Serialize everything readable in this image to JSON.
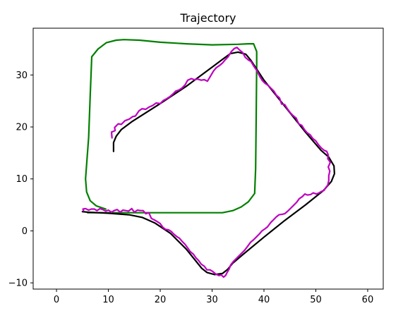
{
  "chart_data": {
    "type": "line",
    "title": "Trajectory",
    "xlabel": "",
    "ylabel": "",
    "xlim": [
      -4.5,
      63
    ],
    "ylim": [
      -11.2,
      39
    ],
    "xticks": [
      0,
      10,
      20,
      30,
      40,
      50,
      60
    ],
    "yticks": [
      -10,
      0,
      10,
      20,
      30
    ],
    "grid": false,
    "series": [
      {
        "color": "#008000",
        "points": [
          [
            6,
            3.5
          ],
          [
            8,
            3.5
          ],
          [
            12,
            3.5
          ],
          [
            16,
            3.5
          ],
          [
            20,
            3.5
          ],
          [
            25,
            3.5
          ],
          [
            30,
            3.5
          ],
          [
            32,
            3.5
          ],
          [
            34,
            3.9
          ],
          [
            35.6,
            4.6
          ],
          [
            37,
            5.6
          ],
          [
            38.2,
            7.2
          ],
          [
            38.4,
            12
          ],
          [
            38.5,
            22
          ],
          [
            38.6,
            32
          ],
          [
            38.6,
            34.5
          ],
          [
            38,
            36
          ],
          [
            37,
            36
          ],
          [
            35,
            35.9
          ],
          [
            30,
            35.8
          ],
          [
            25,
            36
          ],
          [
            20,
            36.3
          ],
          [
            16,
            36.7
          ],
          [
            13,
            36.8
          ],
          [
            11.5,
            36.7
          ],
          [
            9.6,
            36.2
          ],
          [
            8,
            35
          ],
          [
            6.8,
            33.5
          ],
          [
            6.5,
            26
          ],
          [
            6.2,
            18
          ],
          [
            5.6,
            10
          ],
          [
            5.8,
            7.5
          ],
          [
            6.5,
            5.8
          ],
          [
            7.7,
            4.8
          ],
          [
            9.5,
            4.2
          ]
        ]
      },
      {
        "color": "#000000",
        "points": [
          [
            11,
            15.3
          ],
          [
            11,
            17
          ],
          [
            11.5,
            18.2
          ],
          [
            12.5,
            19.5
          ],
          [
            14.5,
            21
          ],
          [
            20,
            24.5
          ],
          [
            25,
            27.8
          ],
          [
            30,
            31.5
          ],
          [
            32,
            33
          ],
          [
            33.5,
            34.1
          ],
          [
            35,
            34.4
          ],
          [
            36.5,
            34
          ],
          [
            37.5,
            32.8
          ],
          [
            40,
            29
          ],
          [
            44,
            24
          ],
          [
            48,
            19
          ],
          [
            51,
            15.5
          ],
          [
            52.5,
            14.2
          ],
          [
            53.5,
            12.5
          ],
          [
            53.6,
            11
          ],
          [
            53,
            9.5
          ],
          [
            51.5,
            7.8
          ],
          [
            48,
            5
          ],
          [
            44,
            2
          ],
          [
            40,
            -1.2
          ],
          [
            36,
            -4.5
          ],
          [
            34,
            -6.2
          ],
          [
            33,
            -7.4
          ],
          [
            32,
            -8.2
          ],
          [
            30.5,
            -8.4
          ],
          [
            29,
            -8
          ],
          [
            28,
            -7.2
          ],
          [
            25,
            -3.5
          ],
          [
            22,
            -0.5
          ],
          [
            19,
            1.5
          ],
          [
            16.5,
            2.6
          ],
          [
            14,
            3.1
          ],
          [
            10,
            3.4
          ],
          [
            6,
            3.6
          ],
          [
            5,
            3.7
          ]
        ]
      },
      {
        "color": "#bf00bf",
        "points": [
          [
            10.7,
            17.9
          ],
          [
            10.6,
            19
          ],
          [
            11.3,
            19.3
          ],
          [
            11.2,
            19.9
          ],
          [
            11.9,
            20.6
          ],
          [
            12.5,
            20.5
          ],
          [
            13.2,
            21.2
          ],
          [
            14,
            21.5
          ],
          [
            14.7,
            22
          ],
          [
            15.2,
            22.1
          ],
          [
            15.9,
            23.1
          ],
          [
            16.5,
            23.5
          ],
          [
            17.2,
            23.4
          ],
          [
            17.8,
            23.8
          ],
          [
            18.5,
            24.1
          ],
          [
            19.2,
            24.6
          ],
          [
            20,
            24.5
          ],
          [
            20.6,
            25.1
          ],
          [
            21.2,
            25.4
          ],
          [
            21.8,
            25.8
          ],
          [
            22.4,
            26.3
          ],
          [
            23,
            26.9
          ],
          [
            23.6,
            27.1
          ],
          [
            24.2,
            27.5
          ],
          [
            24.8,
            28.1
          ],
          [
            25.3,
            29
          ],
          [
            26,
            29.3
          ],
          [
            26.6,
            29.1
          ],
          [
            27.2,
            29.2
          ],
          [
            27.9,
            29
          ],
          [
            28.5,
            29.1
          ],
          [
            29.1,
            28.8
          ],
          [
            29.7,
            29.8
          ],
          [
            30.3,
            30.8
          ],
          [
            30.8,
            31.4
          ],
          [
            31.4,
            31.8
          ],
          [
            32,
            32.3
          ],
          [
            32.5,
            32.9
          ],
          [
            33.1,
            33.5
          ],
          [
            33.7,
            34.5
          ],
          [
            34.3,
            35.1
          ],
          [
            34.8,
            35.3
          ],
          [
            35.3,
            34.8
          ],
          [
            35.9,
            34.3
          ],
          [
            36.4,
            33.4
          ],
          [
            37,
            32.9
          ],
          [
            37.5,
            32.6
          ],
          [
            38.1,
            31.6
          ],
          [
            38.6,
            30.9
          ],
          [
            39.2,
            29.7
          ],
          [
            39.7,
            28.9
          ],
          [
            40.2,
            28.4
          ],
          [
            40.8,
            28
          ],
          [
            41.3,
            27.5
          ],
          [
            41.9,
            26.9
          ],
          [
            42.4,
            26.1
          ],
          [
            43,
            25.6
          ],
          [
            43.4,
            24.4
          ],
          [
            44,
            24.3
          ],
          [
            44.5,
            23.5
          ],
          [
            45.1,
            22.7
          ],
          [
            45.6,
            22.2
          ],
          [
            46.2,
            21.7
          ],
          [
            46.7,
            20.6
          ],
          [
            47.3,
            20.3
          ],
          [
            47.8,
            19.5
          ],
          [
            48.3,
            18.9
          ],
          [
            48.9,
            18.5
          ],
          [
            49.4,
            17.8
          ],
          [
            50,
            17.3
          ],
          [
            50.5,
            16.6
          ],
          [
            51,
            16
          ],
          [
            51.6,
            15.5
          ],
          [
            52.1,
            15.3
          ],
          [
            52.4,
            14.6
          ],
          [
            52.3,
            13.9
          ],
          [
            52.8,
            13.2
          ],
          [
            52.4,
            12.3
          ],
          [
            52.7,
            11.5
          ],
          [
            52.5,
            10.6
          ],
          [
            52.5,
            9.7
          ],
          [
            52.3,
            8.8
          ],
          [
            51.9,
            8.3
          ],
          [
            51.6,
            7.8
          ],
          [
            51.1,
            7.6
          ],
          [
            50.6,
            7.3
          ],
          [
            50.1,
            7.1
          ],
          [
            49.5,
            7.3
          ],
          [
            49,
            7
          ],
          [
            48.4,
            6.9
          ],
          [
            47.9,
            7.1
          ],
          [
            47.4,
            6.6
          ],
          [
            46.8,
            6.2
          ],
          [
            46.3,
            5.5
          ],
          [
            45.7,
            4.9
          ],
          [
            45.2,
            4.4
          ],
          [
            44.6,
            3.8
          ],
          [
            44,
            3.3
          ],
          [
            43.5,
            3.2
          ],
          [
            42.9,
            3.1
          ],
          [
            42.4,
            2.7
          ],
          [
            41.8,
            2.1
          ],
          [
            41.3,
            1.6
          ],
          [
            40.7,
            0.8
          ],
          [
            40.2,
            0.4
          ],
          [
            39.6,
            0
          ],
          [
            39.1,
            -0.6
          ],
          [
            38.5,
            -1.2
          ],
          [
            38,
            -1.7
          ],
          [
            37.4,
            -2.2
          ],
          [
            36.9,
            -2.9
          ],
          [
            36.3,
            -3.7
          ],
          [
            35.8,
            -4.2
          ],
          [
            35.2,
            -4.8
          ],
          [
            34.7,
            -5.3
          ],
          [
            34.1,
            -5.9
          ],
          [
            33.6,
            -6.5
          ],
          [
            33.3,
            -7.3
          ],
          [
            32.9,
            -8
          ],
          [
            32.6,
            -8.6
          ],
          [
            32.2,
            -8.9
          ],
          [
            31.8,
            -8.5
          ],
          [
            31.3,
            -8.6
          ],
          [
            30.7,
            -8.3
          ],
          [
            30.1,
            -7.8
          ],
          [
            29.6,
            -7.5
          ],
          [
            29,
            -7.5
          ],
          [
            28.5,
            -6.8
          ],
          [
            27.9,
            -6.4
          ],
          [
            27.4,
            -5.7
          ],
          [
            26.9,
            -5.2
          ],
          [
            26.4,
            -4.5
          ],
          [
            25.8,
            -4
          ],
          [
            25.3,
            -3.3
          ],
          [
            24.8,
            -2.6
          ],
          [
            24.2,
            -2
          ],
          [
            23.7,
            -1.4
          ],
          [
            23.2,
            -1.1
          ],
          [
            22.6,
            -0.6
          ],
          [
            22.1,
            -0.1
          ],
          [
            21.6,
            0.2
          ],
          [
            21,
            0.3
          ],
          [
            20.5,
            0.7
          ],
          [
            20,
            1.4
          ],
          [
            19.4,
            1.8
          ],
          [
            18.9,
            2.1
          ],
          [
            18.3,
            2.4
          ],
          [
            17.8,
            3.5
          ],
          [
            17.2,
            3.3
          ],
          [
            16.7,
            3.9
          ],
          [
            16.2,
            3.9
          ],
          [
            15.6,
            4
          ],
          [
            15,
            3.6
          ],
          [
            14.5,
            4.3
          ],
          [
            13.9,
            3.8
          ],
          [
            13.4,
            3.9
          ],
          [
            12.8,
            4
          ],
          [
            12.3,
            3.6
          ],
          [
            11.7,
            4.1
          ],
          [
            11.1,
            3.9
          ],
          [
            10.6,
            3.6
          ],
          [
            10,
            4
          ],
          [
            9.5,
            3.8
          ],
          [
            8.9,
            4.1
          ],
          [
            8.4,
            4.3
          ],
          [
            7.8,
            3.9
          ],
          [
            7.3,
            4.2
          ],
          [
            6.7,
            4.2
          ],
          [
            6.2,
            4
          ],
          [
            5.6,
            4.3
          ],
          [
            5.1,
            4.2
          ],
          [
            5.2,
            3.9
          ]
        ]
      }
    ]
  }
}
